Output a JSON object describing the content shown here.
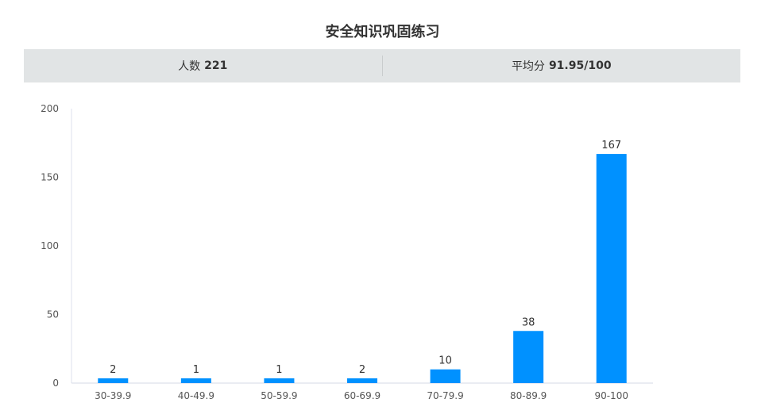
{
  "title": "安全知识巩固练习",
  "stats": {
    "count_label": "人数",
    "count_value": "221",
    "avg_label": "平均分",
    "avg_value": "91.95/100"
  },
  "chart_data": {
    "type": "bar",
    "categories": [
      "30-39.9",
      "40-49.9",
      "50-59.9",
      "60-69.9",
      "70-79.9",
      "80-89.9",
      "90-100"
    ],
    "values": [
      2,
      1,
      1,
      2,
      10,
      38,
      167
    ],
    "ylim": [
      0,
      200
    ],
    "yticks": [
      0,
      50,
      100,
      150,
      200
    ],
    "bar_color": "#0091ff",
    "grid": false,
    "data_labels": true
  }
}
